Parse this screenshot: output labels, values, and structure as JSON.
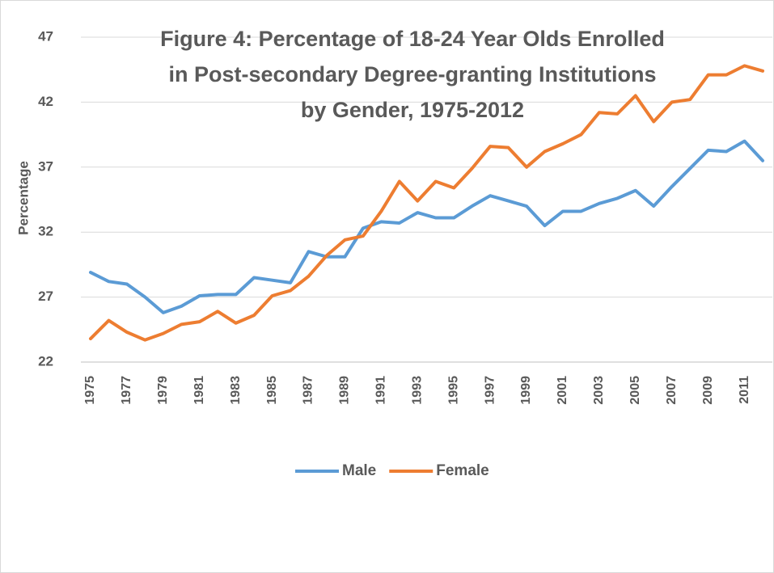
{
  "chart_data": {
    "type": "line",
    "title": [
      "Figure 4: Percentage of 18-24 Year Olds Enrolled",
      "in Post-secondary Degree-granting Institutions",
      "by Gender, 1975-2012"
    ],
    "y_label": "Percentage",
    "categories": [
      "1975",
      null,
      "1977",
      null,
      "1979",
      null,
      "1981",
      null,
      "1983",
      null,
      "1985",
      null,
      "1987",
      null,
      "1989",
      null,
      "1991",
      null,
      "1993",
      null,
      "1995",
      null,
      "1997",
      null,
      "1999",
      null,
      "2001",
      null,
      "2003",
      null,
      "2005",
      null,
      "2007",
      null,
      "2009",
      null,
      "2011",
      null
    ],
    "series": [
      {
        "name": "Male",
        "color": "#5b9bd5",
        "values": [
          28.9,
          28.2,
          28.0,
          27.0,
          25.8,
          26.3,
          27.1,
          27.2,
          27.2,
          28.5,
          28.3,
          28.1,
          30.5,
          30.1,
          30.1,
          32.3,
          32.8,
          32.7,
          33.5,
          33.1,
          33.1,
          34.0,
          34.8,
          34.4,
          34.0,
          32.5,
          33.6,
          33.6,
          34.2,
          34.6,
          35.2,
          34.0,
          35.5,
          36.9,
          38.3,
          38.2,
          39.0,
          37.5
        ]
      },
      {
        "name": "Female",
        "color": "#ed7d31",
        "values": [
          23.8,
          25.2,
          24.3,
          23.7,
          24.2,
          24.9,
          25.1,
          25.9,
          25.0,
          25.6,
          27.1,
          27.5,
          28.6,
          30.2,
          31.4,
          31.7,
          33.6,
          35.9,
          34.4,
          35.9,
          35.4,
          36.9,
          38.6,
          38.5,
          37.0,
          38.2,
          38.8,
          39.5,
          41.2,
          41.1,
          42.5,
          40.5,
          42.0,
          42.2,
          44.1,
          44.1,
          44.8,
          44.4
        ]
      }
    ],
    "ylim": [
      22,
      47
    ],
    "yticks": [
      22,
      27,
      32,
      37,
      42,
      47
    ],
    "grid": true,
    "legend": "bottom"
  }
}
